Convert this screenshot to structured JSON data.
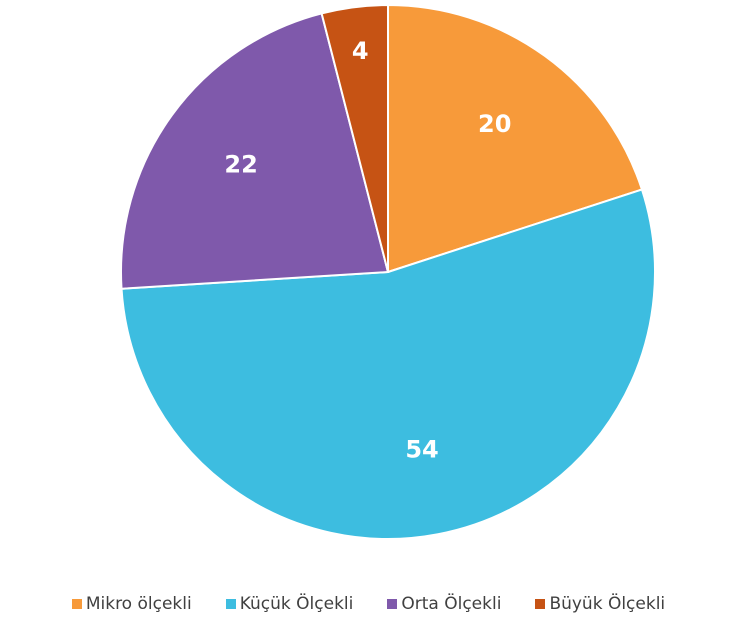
{
  "chart_data": {
    "type": "pie",
    "categories": [
      "Mikro ölçekli",
      "Küçük Ölçekli",
      "Orta Ölçekli",
      "Büyük Ölçekli"
    ],
    "values": [
      20,
      54,
      22,
      4
    ],
    "colors": [
      "#f79a3a",
      "#3dbde0",
      "#7f59ab",
      "#c65314"
    ],
    "legend": "bottom"
  }
}
